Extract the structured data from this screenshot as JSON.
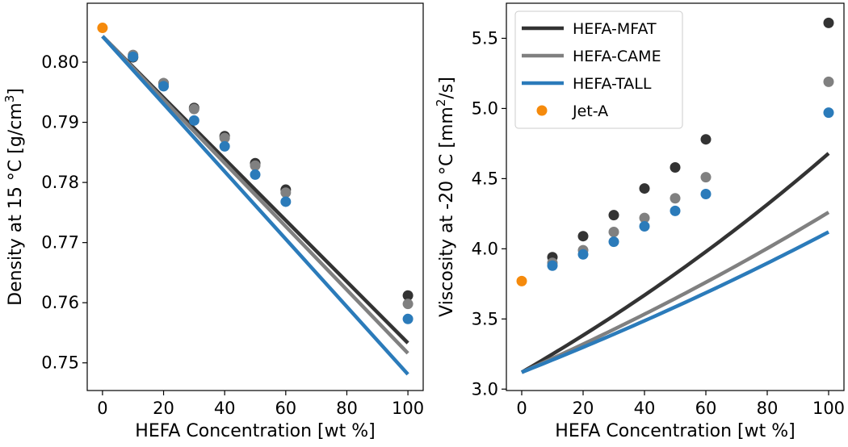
{
  "colors": {
    "HEFA-MFAT": "#333333",
    "HEFA-CAME": "#808080",
    "HEFA-TALL": "#2b7bba",
    "Jet-A": "#f58a0c"
  },
  "chart_data": [
    {
      "type": "line+scatter",
      "xlabel": "HEFA Concentration [wt %]",
      "ylabel": "Density at 15 °C [g/cm³]",
      "xlim": [
        -5,
        105
      ],
      "ylim": [
        0.7454,
        0.8098
      ],
      "xticks": [
        0,
        20,
        40,
        60,
        80,
        100
      ],
      "yticks": [
        0.75,
        0.76,
        0.77,
        0.78,
        0.79,
        0.8
      ],
      "xtick_labels": [
        "0",
        "20",
        "40",
        "60",
        "80",
        "100"
      ],
      "ytick_labels": [
        "0.75",
        "0.76",
        "0.77",
        "0.78",
        "0.79",
        "0.80"
      ],
      "lines": [
        {
          "name": "HEFA-MFAT",
          "x": [
            0,
            100
          ],
          "y": [
            0.8043,
            0.7533
          ]
        },
        {
          "name": "HEFA-CAME",
          "x": [
            0,
            100
          ],
          "y": [
            0.8043,
            0.7516
          ]
        },
        {
          "name": "HEFA-TALL",
          "x": [
            0,
            100
          ],
          "y": [
            0.8043,
            0.7481
          ]
        }
      ],
      "points": [
        {
          "name": "HEFA-MFAT",
          "x": [
            10,
            20,
            30,
            40,
            50,
            60,
            100
          ],
          "y": [
            0.8008,
            0.7965,
            0.7924,
            0.7877,
            0.7832,
            0.7788,
            0.7612
          ]
        },
        {
          "name": "HEFA-CAME",
          "x": [
            10,
            20,
            30,
            40,
            50,
            60,
            100
          ],
          "y": [
            0.8012,
            0.7965,
            0.7922,
            0.7874,
            0.7828,
            0.7783,
            0.7598
          ]
        },
        {
          "name": "HEFA-TALL",
          "x": [
            10,
            20,
            30,
            40,
            50,
            60,
            100
          ],
          "y": [
            0.8009,
            0.796,
            0.7903,
            0.786,
            0.7813,
            0.7768,
            0.7573
          ]
        },
        {
          "name": "Jet-A",
          "x": [
            0
          ],
          "y": [
            0.8057
          ]
        }
      ]
    },
    {
      "type": "line+scatter",
      "xlabel": "HEFA Concentration [wt %]",
      "ylabel": "Viscosity at -20 °C [mm²/s]",
      "xlim": [
        -5,
        105
      ],
      "ylim": [
        2.99,
        5.75
      ],
      "xticks": [
        0,
        20,
        40,
        60,
        80,
        100
      ],
      "yticks": [
        3.0,
        3.5,
        4.0,
        4.5,
        5.0,
        5.5
      ],
      "xtick_labels": [
        "0",
        "20",
        "40",
        "60",
        "80",
        "100"
      ],
      "ytick_labels": [
        "3.0",
        "3.5",
        "4.0",
        "4.5",
        "5.0",
        "5.5"
      ],
      "curves": [
        {
          "name": "HEFA-MFAT",
          "x0": 0,
          "y0": 3.12,
          "x1": 100,
          "y1": 4.68
        },
        {
          "name": "HEFA-CAME",
          "x0": 0,
          "y0": 3.12,
          "x1": 100,
          "y1": 4.26
        },
        {
          "name": "HEFA-TALL",
          "x0": 0,
          "y0": 3.12,
          "x1": 100,
          "y1": 4.12
        }
      ],
      "points": [
        {
          "name": "HEFA-MFAT",
          "x": [
            10,
            20,
            30,
            40,
            50,
            60,
            100
          ],
          "y": [
            3.94,
            4.09,
            4.24,
            4.43,
            4.58,
            4.78,
            5.61
          ]
        },
        {
          "name": "HEFA-CAME",
          "x": [
            10,
            20,
            30,
            40,
            50,
            60,
            100
          ],
          "y": [
            3.9,
            3.99,
            4.12,
            4.22,
            4.36,
            4.51,
            5.19
          ]
        },
        {
          "name": "HEFA-TALL",
          "x": [
            10,
            20,
            30,
            40,
            50,
            60,
            100
          ],
          "y": [
            3.88,
            3.96,
            4.05,
            4.16,
            4.27,
            4.39,
            4.97
          ]
        },
        {
          "name": "Jet-A",
          "x": [
            0
          ],
          "y": [
            3.77
          ]
        }
      ],
      "legend": {
        "location": "top-left",
        "entries": [
          {
            "name": "HEFA-MFAT",
            "kind": "line"
          },
          {
            "name": "HEFA-CAME",
            "kind": "line"
          },
          {
            "name": "HEFA-TALL",
            "kind": "line"
          },
          {
            "name": "Jet-A",
            "kind": "marker"
          }
        ]
      }
    }
  ]
}
